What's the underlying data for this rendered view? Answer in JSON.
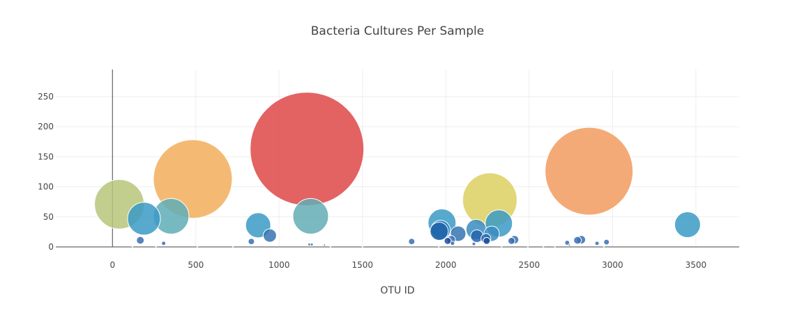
{
  "chart_data": {
    "type": "scatter",
    "title": "Bacteria Cultures Per Sample",
    "xlabel": "OTU ID",
    "ylabel": "",
    "xlim": [
      -340,
      3760
    ],
    "ylim": [
      0,
      295
    ],
    "x_ticks": [
      0,
      500,
      1000,
      1500,
      2000,
      2500,
      3000,
      3500
    ],
    "y_ticks": [
      0,
      50,
      100,
      150,
      200,
      250
    ],
    "grid": true,
    "legend": "none",
    "marker_style": "bubble, size proportional to value, colored by OTU ID",
    "points": [
      {
        "x": 41,
        "y": 71,
        "color": "#b6c57a"
      },
      {
        "x": 189,
        "y": 47,
        "color": "#3a9ac4"
      },
      {
        "x": 352,
        "y": 51,
        "color": "#5fadb6"
      },
      {
        "x": 482,
        "y": 113,
        "color": "#f2ae5a"
      },
      {
        "x": 1167,
        "y": 163,
        "color": "#de4848"
      },
      {
        "x": 2264,
        "y": 78,
        "color": "#dcd060"
      },
      {
        "x": 2859,
        "y": 126,
        "color": "#f29b5e"
      },
      {
        "x": 1189,
        "y": 51,
        "color": "#63adb4"
      },
      {
        "x": 874,
        "y": 36,
        "color": "#3a9ac4"
      },
      {
        "x": 944,
        "y": 19,
        "color": "#3574b2"
      },
      {
        "x": 1977,
        "y": 40,
        "color": "#3a9ac4"
      },
      {
        "x": 1968,
        "y": 28,
        "color": "#2a7fbc"
      },
      {
        "x": 1960,
        "y": 26,
        "color": "#1e63a8"
      },
      {
        "x": 2074,
        "y": 22,
        "color": "#3574b2"
      },
      {
        "x": 2182,
        "y": 29,
        "color": "#3a8cc0"
      },
      {
        "x": 2186,
        "y": 18,
        "color": "#2465ab"
      },
      {
        "x": 2318,
        "y": 39,
        "color": "#3a9ac4"
      },
      {
        "x": 2275,
        "y": 22,
        "color": "#3a8cc0"
      },
      {
        "x": 2240,
        "y": 14,
        "color": "#2465ab"
      },
      {
        "x": 2245,
        "y": 10,
        "color": "#1e4e9a"
      },
      {
        "x": 3450,
        "y": 37,
        "color": "#3a9ac4"
      },
      {
        "x": 167,
        "y": 11,
        "color": "#3a6eb0"
      },
      {
        "x": 307,
        "y": 6,
        "color": "#3a6eb0"
      },
      {
        "x": 833,
        "y": 9,
        "color": "#3a6eb0"
      },
      {
        "x": 1795,
        "y": 9,
        "color": "#3a6eb0"
      },
      {
        "x": 2032,
        "y": 12,
        "color": "#3a6eb0"
      },
      {
        "x": 2011,
        "y": 10,
        "color": "#1e4e9a"
      },
      {
        "x": 2040,
        "y": 6,
        "color": "#3a6eb0"
      },
      {
        "x": 2394,
        "y": 10,
        "color": "#3a6eb0"
      },
      {
        "x": 2412,
        "y": 12,
        "color": "#3a6eb0"
      },
      {
        "x": 2728,
        "y": 7,
        "color": "#3a6eb0"
      },
      {
        "x": 2790,
        "y": 11,
        "color": "#3a6eb0"
      },
      {
        "x": 2813,
        "y": 12,
        "color": "#3a6eb0"
      },
      {
        "x": 2907,
        "y": 6,
        "color": "#3a6eb0"
      },
      {
        "x": 2964,
        "y": 8,
        "color": "#3a6eb0"
      },
      {
        "x": 1181,
        "y": 4,
        "color": "#3a6eb0"
      },
      {
        "x": 1196,
        "y": 4,
        "color": "#3a6eb0"
      },
      {
        "x": 1272,
        "y": 3,
        "color": "#3a6eb0"
      },
      {
        "x": 2168,
        "y": 5,
        "color": "#3a6eb0"
      },
      {
        "x": 2741,
        "y": 3,
        "color": "#3a6eb0"
      },
      {
        "x": 120,
        "y": 1,
        "color": "#3a6eb0"
      },
      {
        "x": 261,
        "y": 1,
        "color": "#3a6eb0"
      },
      {
        "x": 509,
        "y": 1,
        "color": "#3a6eb0"
      },
      {
        "x": 723,
        "y": 1,
        "color": "#3a6eb0"
      },
      {
        "x": 1308,
        "y": 1,
        "color": "#3a6eb0"
      },
      {
        "x": 1500,
        "y": 1,
        "color": "#3a6eb0"
      },
      {
        "x": 1958,
        "y": 1,
        "color": "#3a6eb0"
      },
      {
        "x": 2335,
        "y": 1,
        "color": "#3a6eb0"
      },
      {
        "x": 2492,
        "y": 1,
        "color": "#3a6eb0"
      },
      {
        "x": 2585,
        "y": 1,
        "color": "#3a6eb0"
      },
      {
        "x": 2654,
        "y": 1,
        "color": "#3a6eb0"
      },
      {
        "x": 2948,
        "y": 1,
        "color": "#3a6eb0"
      }
    ]
  }
}
